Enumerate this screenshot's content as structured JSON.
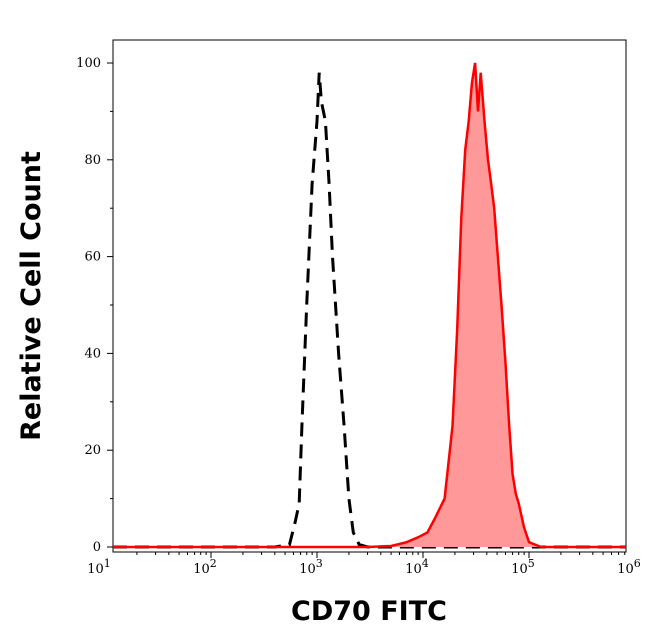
{
  "chart_data": {
    "type": "area",
    "title": "",
    "xlabel": "CD70 FITC",
    "ylabel": "Relative Cell Count",
    "x_scale": "log",
    "xlim": [
      7,
      1200000
    ],
    "ylim": [
      -1,
      105
    ],
    "x_tick_labels": [
      {
        "base": "10",
        "exp": "1"
      },
      {
        "base": "10",
        "exp": "2"
      },
      {
        "base": "10",
        "exp": "3"
      },
      {
        "base": "10",
        "exp": "4"
      },
      {
        "base": "10",
        "exp": "5"
      },
      {
        "base": "10",
        "exp": "6"
      }
    ],
    "y_ticks": [
      0,
      20,
      40,
      60,
      80,
      100
    ],
    "y_tick_labels": [
      "0",
      "20",
      "40",
      "60",
      "80",
      "100"
    ],
    "grid": false,
    "series": [
      {
        "style": "dashed-outline",
        "color": "#000000",
        "x": [
          7,
          100,
          400,
          550,
          620,
          680,
          720,
          800,
          900,
          1000,
          1050,
          1100,
          1200,
          1300,
          1400,
          1600,
          1800,
          2000,
          2200,
          2500,
          3000,
          10000,
          1100000
        ],
        "y": [
          0,
          0,
          0,
          0.5,
          5,
          9,
          25,
          50,
          75,
          88,
          98,
          92,
          88,
          75,
          60,
          40,
          25,
          10,
          3,
          0.5,
          0,
          0,
          0
        ]
      },
      {
        "style": "filled",
        "color": "#ff0000",
        "fill": "#ff9999",
        "x": [
          7,
          3000,
          5000,
          7000,
          9000,
          11000,
          13000,
          16000,
          19000,
          21000,
          23000,
          25000,
          27000,
          29000,
          31000,
          33000,
          35000,
          38000,
          41000,
          44000,
          47000,
          50000,
          55000,
          60000,
          65000,
          70000,
          75000,
          80000,
          90000,
          100000,
          130000,
          1100000
        ],
        "y": [
          0,
          0,
          0.2,
          1,
          2,
          3,
          6,
          10,
          25,
          45,
          68,
          82,
          88,
          96,
          100,
          90,
          98,
          88,
          80,
          75,
          70,
          62,
          50,
          38,
          25,
          15,
          11,
          9,
          4,
          1,
          0,
          0
        ]
      }
    ]
  }
}
